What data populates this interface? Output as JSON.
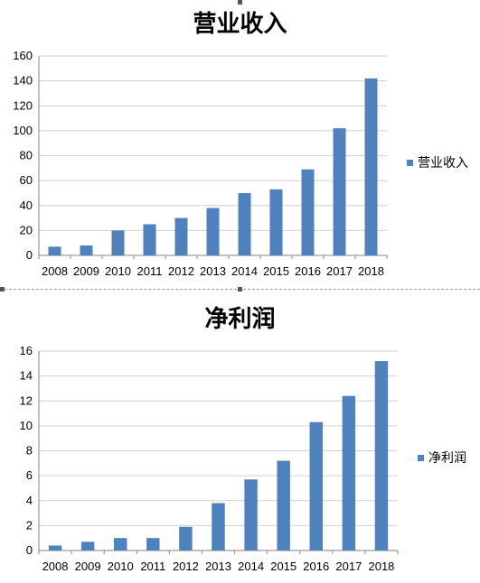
{
  "chart_data": [
    {
      "type": "bar",
      "title": "营业收入",
      "categories": [
        "2008",
        "2009",
        "2010",
        "2011",
        "2012",
        "2013",
        "2014",
        "2015",
        "2016",
        "2017",
        "2018"
      ],
      "series": [
        {
          "name": "营业收入",
          "values": [
            7,
            8,
            20,
            25,
            30,
            38,
            50,
            53,
            69,
            102,
            142
          ]
        }
      ],
      "ylim": [
        0,
        160
      ],
      "yticks": [
        0,
        20,
        40,
        60,
        80,
        100,
        120,
        140,
        160
      ],
      "grid": true,
      "legend": "right",
      "color": "#4f81bd"
    },
    {
      "type": "bar",
      "title": "净利润",
      "categories": [
        "2008",
        "2009",
        "2010",
        "2011",
        "2012",
        "2013",
        "2014",
        "2015",
        "2016",
        "2017",
        "2018"
      ],
      "series": [
        {
          "name": "净利润",
          "values": [
            0.4,
            0.7,
            1.0,
            1.0,
            1.9,
            3.8,
            5.7,
            7.2,
            10.3,
            12.4,
            15.2
          ]
        }
      ],
      "ylim": [
        0,
        16
      ],
      "yticks": [
        0,
        2,
        4,
        6,
        8,
        10,
        12,
        14,
        16
      ],
      "grid": true,
      "legend": "right",
      "color": "#4f81bd"
    }
  ]
}
